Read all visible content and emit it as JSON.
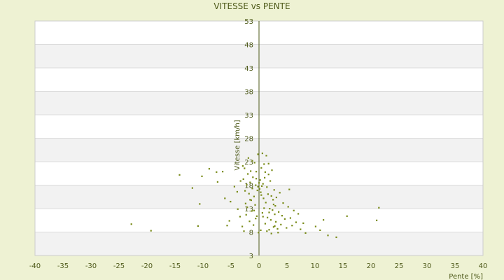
{
  "chart_data": {
    "type": "scatter",
    "title": "VITESSE vs PENTE",
    "xlabel": "Pente [%]",
    "ylabel": "Vitesse [km/h]",
    "xlim": [
      -40,
      40
    ],
    "ylim": [
      3,
      53
    ],
    "x_ticks": [
      -40,
      -35,
      -30,
      -25,
      -20,
      -15,
      -10,
      -5,
      0,
      5,
      10,
      15,
      20,
      25,
      30,
      35,
      40
    ],
    "y_ticks": [
      3,
      8,
      13,
      18,
      23,
      28,
      33,
      38,
      43,
      48,
      53
    ],
    "grid": true,
    "band_colors": [
      "#ffffff",
      "#f2f2f2"
    ],
    "plot_border_color": "#cccccc",
    "axis_color": "#4e5a1a",
    "point_color": "#7a8c1a",
    "points": [
      [
        -22.8,
        9.7
      ],
      [
        -19.3,
        8.3
      ],
      [
        -14.2,
        20.2
      ],
      [
        -11.9,
        17.4
      ],
      [
        -10.9,
        9.3
      ],
      [
        -10.6,
        14.0
      ],
      [
        -10.2,
        19.9
      ],
      [
        -8.9,
        21.5
      ],
      [
        -7.6,
        20.8
      ],
      [
        -7.4,
        18.7
      ],
      [
        -6.5,
        20.9
      ],
      [
        -6.1,
        15.2
      ],
      [
        -5.7,
        9.4
      ],
      [
        -5.3,
        10.4
      ],
      [
        -5.1,
        14.5
      ],
      [
        -4.4,
        17.7
      ],
      [
        -3.9,
        16.6
      ],
      [
        -3.8,
        12.9
      ],
      [
        -3.4,
        11.3
      ],
      [
        -3.3,
        18.9
      ],
      [
        -3.0,
        9.2
      ],
      [
        -2.9,
        22.1
      ],
      [
        -2.8,
        19.3
      ],
      [
        -2.6,
        21.6
      ],
      [
        -2.5,
        16.8
      ],
      [
        -2.4,
        14.1
      ],
      [
        -2.3,
        11.7
      ],
      [
        -2.2,
        18.1
      ],
      [
        -2.1,
        13.3
      ],
      [
        -2.0,
        20.4
      ],
      [
        -1.9,
        23.8
      ],
      [
        -1.8,
        16.2
      ],
      [
        -1.7,
        10.3
      ],
      [
        -1.6,
        18.6
      ],
      [
        -1.5,
        21.0
      ],
      [
        -1.4,
        14.8
      ],
      [
        -1.3,
        12.5
      ],
      [
        -1.2,
        17.3
      ],
      [
        -1.1,
        19.7
      ],
      [
        -1.0,
        9.5
      ],
      [
        -0.9,
        15.6
      ],
      [
        -0.8,
        22.8
      ],
      [
        -0.7,
        13.8
      ],
      [
        -0.6,
        18.0
      ],
      [
        -0.5,
        20.9
      ],
      [
        -0.4,
        11.4
      ],
      [
        -0.3,
        16.9
      ],
      [
        -0.2,
        24.6
      ],
      [
        -0.1,
        7.9
      ],
      [
        0.0,
        18.5
      ],
      [
        0.1,
        17.2
      ],
      [
        0.2,
        19.1
      ],
      [
        0.3,
        16.5
      ],
      [
        0.4,
        21.7
      ],
      [
        0.5,
        17.8
      ],
      [
        0.6,
        12.1
      ],
      [
        0.7,
        18.3
      ],
      [
        0.8,
        15.2
      ],
      [
        0.9,
        22.5
      ],
      [
        1.0,
        19.6
      ],
      [
        1.1,
        9.8
      ],
      [
        1.2,
        14.3
      ],
      [
        1.3,
        24.3
      ],
      [
        1.4,
        17.6
      ],
      [
        1.5,
        11.1
      ],
      [
        1.6,
        16.1
      ],
      [
        1.7,
        20.3
      ],
      [
        1.8,
        8.5
      ],
      [
        1.9,
        13.0
      ],
      [
        2.0,
        18.9
      ],
      [
        2.1,
        10.6
      ],
      [
        2.2,
        15.7
      ],
      [
        2.3,
        21.2
      ],
      [
        2.4,
        12.7
      ],
      [
        2.5,
        14.9
      ],
      [
        2.6,
        9.1
      ],
      [
        2.7,
        17.0
      ],
      [
        2.8,
        11.8
      ],
      [
        2.9,
        13.6
      ],
      [
        3.0,
        10.2
      ],
      [
        3.1,
        15.4
      ],
      [
        3.3,
        8.7
      ],
      [
        3.5,
        12.3
      ],
      [
        3.7,
        16.4
      ],
      [
        3.9,
        9.6
      ],
      [
        4.1,
        11.5
      ],
      [
        4.3,
        14.2
      ],
      [
        4.6,
        10.8
      ],
      [
        4.9,
        8.9
      ],
      [
        5.2,
        13.4
      ],
      [
        5.4,
        17.1
      ],
      [
        5.6,
        11.0
      ],
      [
        5.9,
        9.4
      ],
      [
        6.2,
        12.6
      ],
      [
        6.6,
        10.1
      ],
      [
        7.0,
        11.9
      ],
      [
        7.4,
        8.6
      ],
      [
        7.9,
        9.9
      ],
      [
        8.3,
        7.8
      ],
      [
        10.1,
        9.2
      ],
      [
        10.9,
        8.4
      ],
      [
        11.5,
        10.6
      ],
      [
        12.3,
        7.3
      ],
      [
        13.8,
        6.9
      ],
      [
        15.7,
        11.4
      ],
      [
        21.0,
        10.5
      ],
      [
        21.4,
        13.2
      ],
      [
        -2.7,
        8.2
      ],
      [
        -0.6,
        10.9
      ],
      [
        0.3,
        8.4
      ],
      [
        0.7,
        11.3
      ],
      [
        1.4,
        8.2
      ],
      [
        2.2,
        7.7
      ],
      [
        2.8,
        9.3
      ],
      [
        3.4,
        7.9
      ],
      [
        0.9,
        13.1
      ],
      [
        -0.9,
        12.6
      ],
      [
        1.8,
        12.2
      ],
      [
        -1.6,
        14.9
      ],
      [
        0.4,
        15.9
      ],
      [
        2.6,
        13.9
      ],
      [
        -0.2,
        17.7
      ],
      [
        1.1,
        20.8
      ],
      [
        -1.2,
        23.2
      ],
      [
        0.6,
        24.8
      ],
      [
        -0.5,
        19.4
      ],
      [
        1.7,
        22.6
      ]
    ]
  }
}
